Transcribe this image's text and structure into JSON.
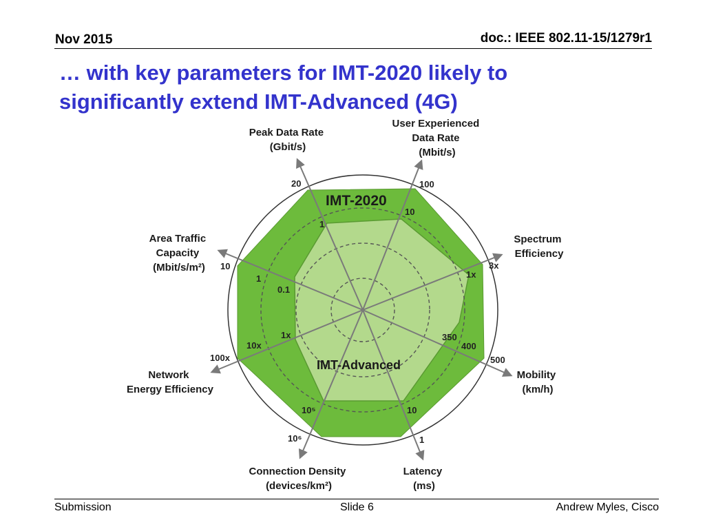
{
  "header": {
    "date": "Nov 2015",
    "doc": "doc.: IEEE 802.11-15/1279r1"
  },
  "title": {
    "line1": "…  with key parameters for IMT-2020 likely to",
    "line2": "significantly extend IMT-Advanced (4G)"
  },
  "diagram": {
    "outer_label": "IMT-2020",
    "inner_label": "IMT-Advanced",
    "colors": {
      "imt2020_fill": "#6dbb3c",
      "imt_advanced_fill": "#b3d98c",
      "axis": "#7a7a7a",
      "circle": "#333333"
    },
    "axes": [
      {
        "name": "Peak Data Rate",
        "unit": "(Gbit/s)",
        "imt2020": "20",
        "imt_advanced": "1"
      },
      {
        "name": "User Experienced Data Rate",
        "unit": "(Mbit/s)",
        "imt2020": "100",
        "imt_advanced": "10"
      },
      {
        "name": "Spectrum Efficiency",
        "unit": "",
        "imt2020": "3x",
        "imt_advanced": "1x"
      },
      {
        "name": "Mobility",
        "unit": "(km/h)",
        "imt2020": "500",
        "imt_advanced": "350",
        "extra": "400"
      },
      {
        "name": "Latency",
        "unit": "(ms)",
        "imt2020": "1",
        "imt_advanced": "10"
      },
      {
        "name": "Connection Density",
        "unit": "(devices/km²)",
        "imt2020": "10⁶",
        "imt_advanced": "10⁵"
      },
      {
        "name": "Network Energy Efficiency",
        "unit": "",
        "imt2020": "100x",
        "imt_advanced": "1x",
        "extra": "10x"
      },
      {
        "name": "Area Traffic Capacity",
        "unit": "(Mbit/s/m²)",
        "imt2020": "10",
        "imt_advanced": "0.1",
        "extra": "1"
      }
    ],
    "axis_text": {
      "peak_1": "Peak Data Rate",
      "peak_2": "(Gbit/s)",
      "uedr_1": "User Experienced",
      "uedr_2": "Data Rate",
      "uedr_3": "(Mbit/s)",
      "se_1": "Spectrum",
      "se_2": "Efficiency",
      "mob_1": "Mobility",
      "mob_2": "(km/h)",
      "lat_1": "Latency",
      "lat_2": "(ms)",
      "cd_1": "Connection Density",
      "cd_2": "(devices/km²)",
      "nee_1": "Network",
      "nee_2": "Energy Efficiency",
      "atc_1": "Area Traffic",
      "atc_2": "Capacity",
      "atc_3": "(Mbit/s/m²)"
    }
  },
  "footer": {
    "left": "Submission",
    "center": "Slide 6",
    "right": "Andrew Myles, Cisco"
  }
}
